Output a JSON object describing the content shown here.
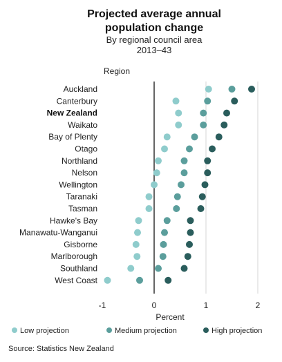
{
  "chart_data": {
    "type": "scatter",
    "title_lines": [
      "Projected average annual",
      "population change"
    ],
    "subtitle_lines": [
      "By regional council area",
      "2013–43"
    ],
    "ylabel": "Region",
    "xlabel": "Percent",
    "xlim": [
      -1,
      2
    ],
    "xticks": [
      -1,
      0,
      1,
      2
    ],
    "grid_lines_x": [
      1,
      2
    ],
    "zero_line": 0,
    "categories": [
      "Auckland",
      "Canterbury",
      "New Zealand",
      "Waikato",
      "Bay of Plenty",
      "Otago",
      "Northland",
      "Nelson",
      "Wellington",
      "Taranaki",
      "Tasman",
      "Hawke's Bay",
      "Manawatu-Wanganui",
      "Gisborne",
      "Marlborough",
      "Southland",
      "West Coast"
    ],
    "bold_category": "New Zealand",
    "series": [
      {
        "name": "Low projection",
        "color": "#8fcccc",
        "values": [
          1.05,
          0.42,
          0.47,
          0.47,
          0.25,
          0.2,
          0.08,
          0.05,
          0.0,
          -0.1,
          -0.1,
          -0.3,
          -0.32,
          -0.35,
          -0.33,
          -0.45,
          -0.9
        ]
      },
      {
        "name": "Medium projection",
        "color": "#5b9e9c",
        "values": [
          1.5,
          1.03,
          0.95,
          0.95,
          0.78,
          0.68,
          0.58,
          0.58,
          0.52,
          0.45,
          0.43,
          0.25,
          0.2,
          0.18,
          0.17,
          0.08,
          -0.28
        ]
      },
      {
        "name": "High projection",
        "color": "#2a5d5c",
        "values": [
          1.88,
          1.55,
          1.4,
          1.35,
          1.25,
          1.12,
          1.03,
          1.03,
          0.98,
          0.93,
          0.9,
          0.7,
          0.7,
          0.68,
          0.65,
          0.58,
          0.27
        ]
      }
    ],
    "legend_position": "bottom",
    "source": "Source: Statistics New Zealand"
  }
}
